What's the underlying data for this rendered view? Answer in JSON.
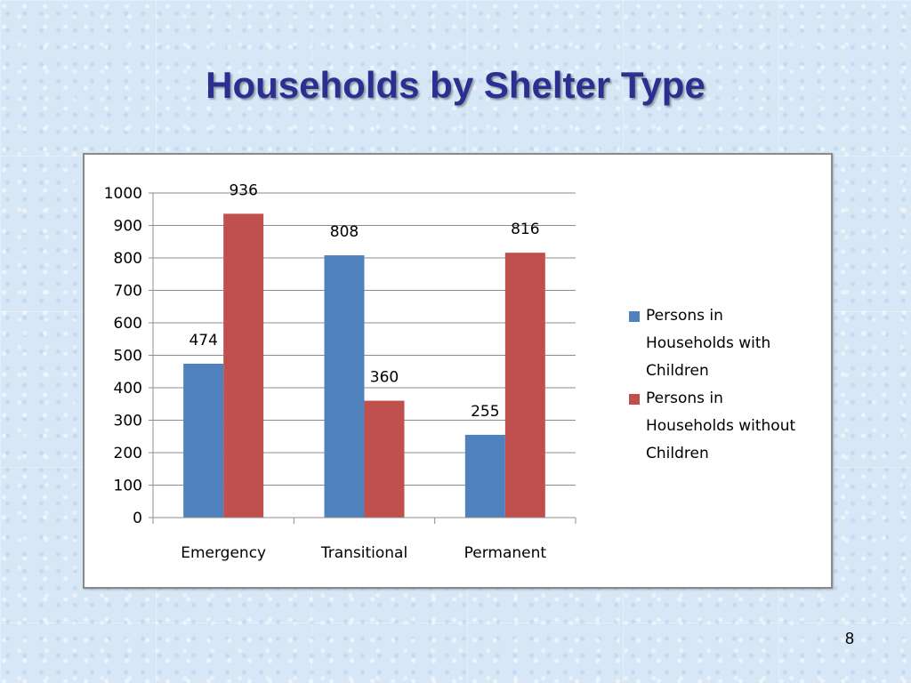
{
  "slide": {
    "title": "Households by Shelter Type",
    "page_number": "8"
  },
  "colors": {
    "series_with_children": "#4f81bd",
    "series_without_children": "#c0504d",
    "title": "#2b2f8f"
  },
  "chart_data": {
    "type": "bar",
    "title": "",
    "xlabel": "",
    "ylabel": "",
    "categories": [
      "Emergency",
      "Transitional",
      "Permanent"
    ],
    "series": [
      {
        "name": "Persons in Households with Children",
        "values": [
          474,
          808,
          255
        ]
      },
      {
        "name": "Persons in Households without Children",
        "values": [
          936,
          360,
          816
        ]
      }
    ],
    "ylim": [
      0,
      1000
    ],
    "yticks": [
      0,
      100,
      200,
      300,
      400,
      500,
      600,
      700,
      800,
      900,
      1000
    ],
    "grid": true,
    "legend_position": "right",
    "data_labels": true
  }
}
